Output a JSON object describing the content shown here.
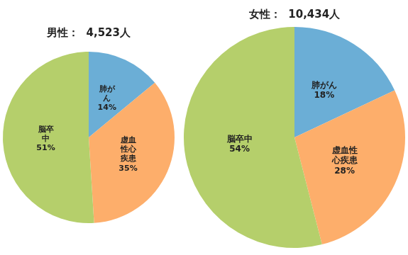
{
  "chart_data": [
    {
      "type": "pie",
      "title": "男性：  4,523人",
      "categories": [
        "肺が\nん",
        "虚血\n性心\n疾患",
        "脳卒\n中"
      ],
      "values": [
        14,
        35,
        51
      ],
      "value_labels": [
        "14%",
        "35%",
        "51%"
      ],
      "colors": [
        "#6baed6",
        "#fdae6b",
        "#b5cf6b"
      ],
      "data_labels": true
    },
    {
      "type": "pie",
      "title": "女性：  10,434人",
      "categories": [
        "肺がん",
        "虚血性\n心疾患",
        "脳卒中"
      ],
      "values": [
        18,
        28,
        54
      ],
      "value_labels": [
        "18%",
        "28%",
        "54%"
      ],
      "colors": [
        "#6baed6",
        "#fdae6b",
        "#b5cf6b"
      ],
      "data_labels": true
    }
  ]
}
